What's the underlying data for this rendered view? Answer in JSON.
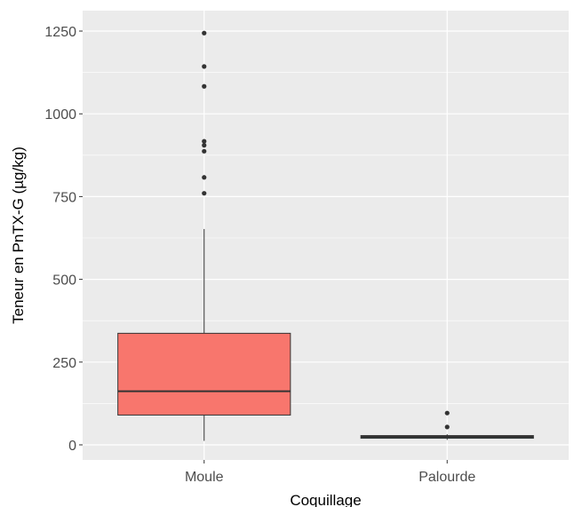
{
  "chart_data": {
    "type": "box",
    "title": "",
    "xlabel": "Coquillage",
    "ylabel": "Teneur en PnTX-G (µg/kg)",
    "categories": [
      "Moule",
      "Palourde"
    ],
    "ylim": [
      -50,
      1310
    ],
    "yticks": [
      0,
      250,
      500,
      750,
      1000,
      1250
    ],
    "grid": true,
    "legend": "none",
    "colors": {
      "panel_background": "#ebebeb",
      "grid": "#ffffff",
      "box_outline": "#333333",
      "Moule": "#f8766d",
      "Palourde": "#00bfc4"
    },
    "boxes": [
      {
        "category": "Moule",
        "fill": "#f8766d",
        "whisker_low": 12,
        "q1": 90,
        "median": 162,
        "q3": 337,
        "whisker_high": 652,
        "outliers": [
          760,
          808,
          887,
          905,
          917,
          1083,
          1143,
          1244
        ]
      },
      {
        "category": "Palourde",
        "fill": "#00bfc4",
        "whisker_low": 15,
        "q1": 20,
        "median": 24,
        "q3": 28,
        "whisker_high": 32,
        "outliers": [
          54,
          96
        ]
      }
    ]
  }
}
